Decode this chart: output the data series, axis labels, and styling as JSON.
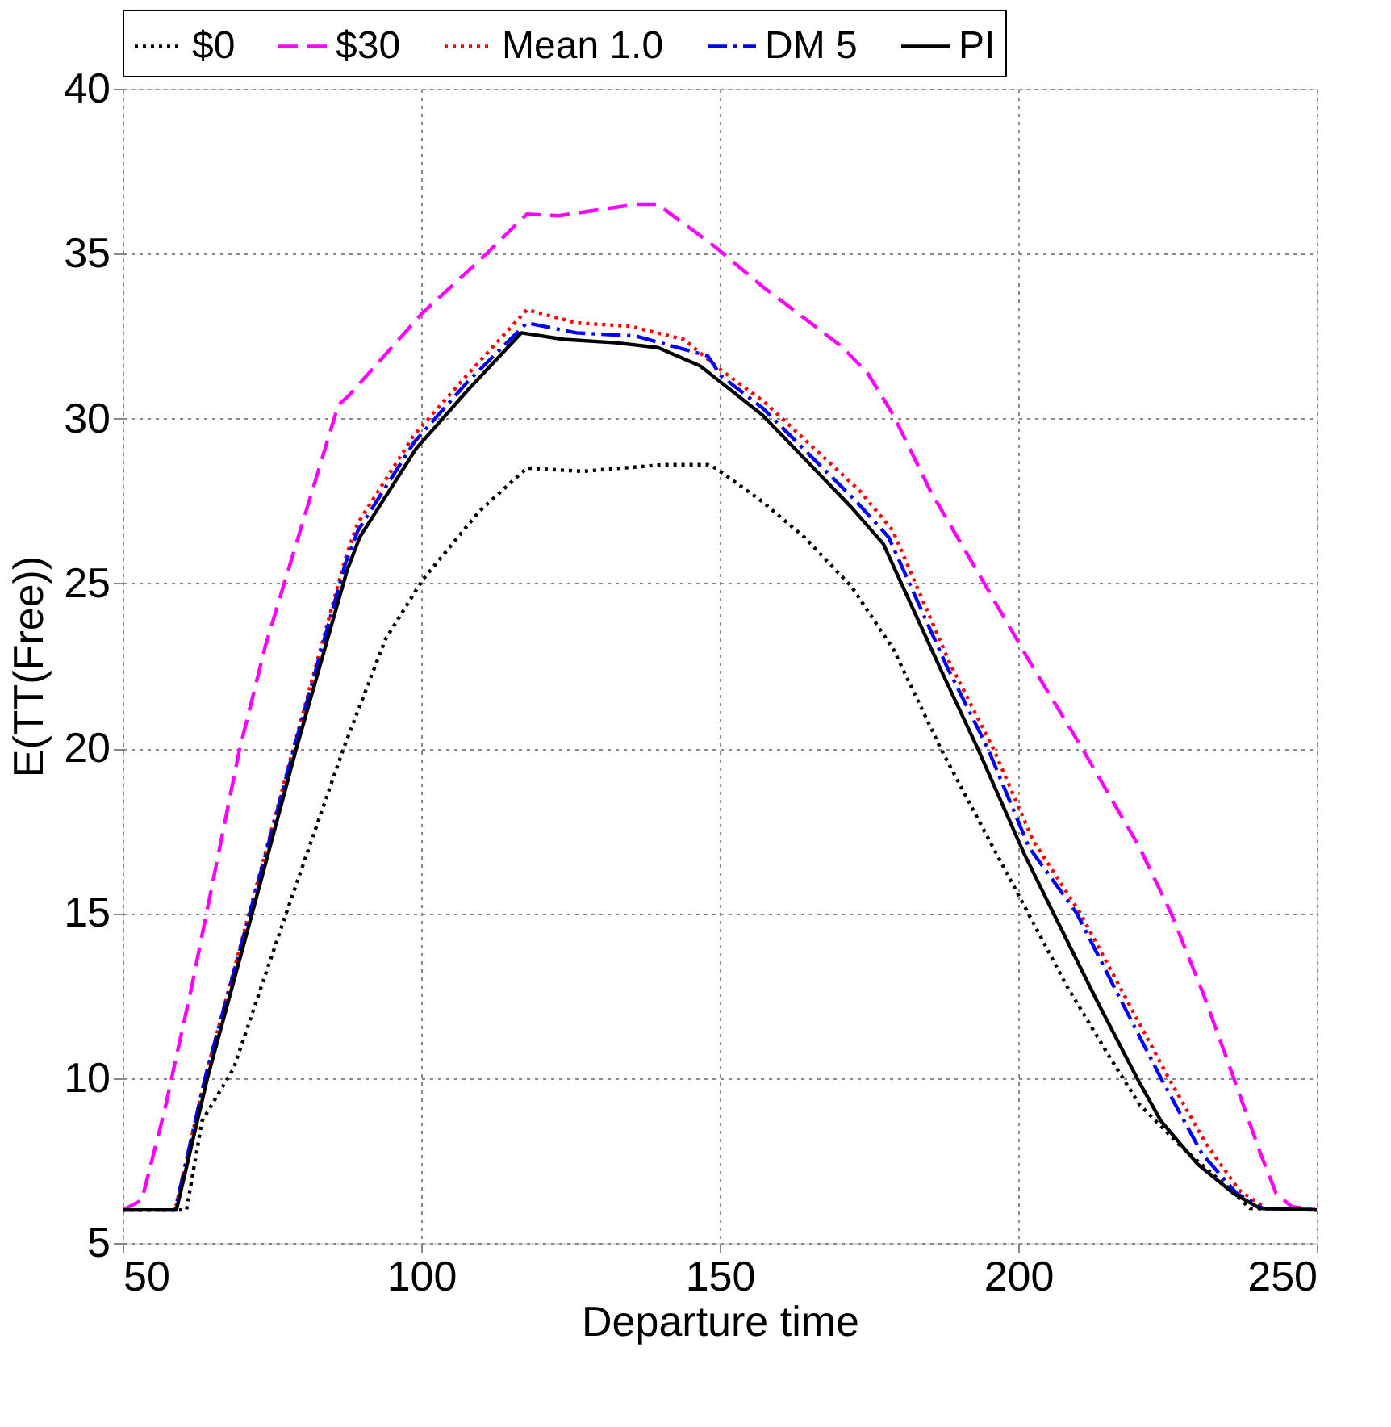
{
  "chart_data": {
    "type": "line",
    "xlabel": "Departure time",
    "ylabel": "E(TT(Free))",
    "xlim": [
      50,
      250
    ],
    "xticks": [
      50,
      100,
      150,
      200,
      250
    ],
    "ylim": [
      5,
      40
    ],
    "yticks": [
      5,
      10,
      15,
      20,
      25,
      30,
      35,
      40
    ],
    "grid": true,
    "legend": "top",
    "series": [
      {
        "name": "$0",
        "color": "#000000",
        "line_style": "dotted",
        "x": [
          50,
          60.7,
          63.3,
          68.6,
          77.4,
          87,
          94,
          100.2,
          109.8,
          117.7,
          127,
          140.5,
          148,
          149.3,
          157,
          164.2,
          172.1,
          179.1,
          187,
          194,
          200.2,
          208.1,
          215.1,
          220.3,
          227.4,
          234.4,
          238.8,
          250
        ],
        "values": [
          6,
          6,
          8.7,
          10.3,
          15,
          20,
          23.3,
          25.1,
          27.2,
          28.5,
          28.4,
          28.6,
          28.6,
          28.5,
          27.5,
          26.4,
          24.9,
          23,
          20,
          17.6,
          15.5,
          12.8,
          10.7,
          9.2,
          7.9,
          6.8,
          6.05,
          6
        ]
      },
      {
        "name": "$30",
        "color": "#ff00ff",
        "line_style": "dashed",
        "x": [
          50,
          53.2,
          57,
          61.6,
          69.5,
          73.9,
          77.4,
          86.1,
          87.9,
          100.2,
          109.8,
          117.7,
          123,
          136.1,
          139.6,
          149.3,
          157.2,
          170.3,
          174.7,
          179.1,
          185.3,
          194,
          202,
          210.7,
          220.3,
          225.6,
          230.9,
          236.1,
          240.5,
          243.2,
          245.8,
          250
        ],
        "values": [
          6,
          6.3,
          9,
          12.8,
          19.9,
          23.1,
          25.2,
          30.4,
          30.7,
          33.2,
          34.8,
          36.2,
          36.15,
          36.5,
          36.5,
          35.2,
          34,
          32.2,
          31.4,
          30.1,
          27.8,
          25.1,
          22.6,
          20,
          17,
          15,
          12.6,
          10,
          7.75,
          6.5,
          6.1,
          6
        ]
      },
      {
        "name": "Mean 1.0",
        "color": "#ff0000",
        "line_style": "dotted",
        "x": [
          50,
          58.8,
          63.8,
          71.2,
          78.6,
          87.2,
          89.3,
          98.8,
          107.6,
          117.7,
          126,
          135,
          144,
          150,
          157.5,
          173.5,
          179,
          188.5,
          195.8,
          202.5,
          210.4,
          217.5,
          225.2,
          231.5,
          237,
          241.5,
          250
        ],
        "values": [
          6,
          6,
          10,
          15,
          20,
          25.7,
          26.8,
          29.5,
          31.3,
          33.3,
          32.9,
          32.8,
          32.4,
          31.5,
          30.5,
          27.8,
          26.6,
          22.6,
          20,
          17.2,
          15,
          12.6,
          10,
          8,
          6.6,
          6.05,
          6
        ]
      },
      {
        "name": "DM 5",
        "color": "#0000ff",
        "line_style": "dashdot",
        "x": [
          50,
          58.8,
          63.8,
          71.3,
          78.7,
          87.3,
          89.4,
          98.9,
          107.7,
          117.7,
          126,
          136,
          148,
          150.2,
          157.3,
          172.8,
          178.3,
          188,
          194.9,
          201.8,
          209.8,
          216.8,
          223.9,
          230.8,
          236.6,
          241,
          250
        ],
        "values": [
          6,
          6,
          10,
          15,
          20,
          25.6,
          26.6,
          29.3,
          31.1,
          32.9,
          32.6,
          32.5,
          31.9,
          31.3,
          30.3,
          27.5,
          26.4,
          22.5,
          20,
          17,
          15,
          12.5,
          10,
          7.7,
          6.5,
          6.05,
          6
        ]
      },
      {
        "name": "PI",
        "color": "#000000",
        "line_style": "solid",
        "x": [
          50,
          59,
          64.2,
          71.7,
          79.1,
          87.6,
          89.7,
          99.2,
          108,
          116.8,
          123.9,
          132.6,
          139.7,
          146.7,
          150.2,
          157.2,
          172.1,
          177.4,
          187,
          193.2,
          201,
          205.9,
          213.3,
          219.9,
          223.9,
          230,
          236.1,
          240.5,
          250
        ],
        "values": [
          6,
          6,
          10,
          15,
          20,
          25.4,
          26.4,
          29.1,
          30.9,
          32.6,
          32.4,
          32.3,
          32.15,
          31.6,
          31.1,
          30.1,
          27.3,
          26.2,
          22.4,
          20,
          16.8,
          15,
          12.3,
          10,
          8.7,
          7.4,
          6.5,
          6.05,
          6
        ]
      }
    ]
  }
}
